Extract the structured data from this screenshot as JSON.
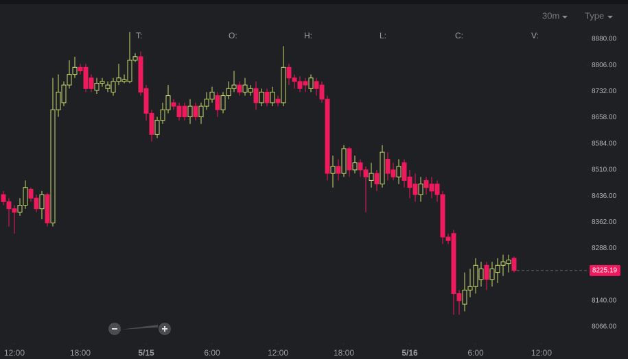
{
  "toolbar": {
    "interval": "30m",
    "chart_type": "Type"
  },
  "info_labels": [
    "T:",
    "O:",
    "H:",
    "L:",
    "C:",
    "V:"
  ],
  "chart_data": {
    "type": "candlestick",
    "up_color": "#c8dd6e",
    "down_color": "#ee1a5e",
    "ylim": [
      8021.5,
      8990.5
    ],
    "yticks": [
      {
        "value": 8880,
        "label": "8880.00"
      },
      {
        "value": 8806,
        "label": "8806.00"
      },
      {
        "value": 8732,
        "label": "8732.00"
      },
      {
        "value": 8658,
        "label": "8658.00"
      },
      {
        "value": 8584,
        "label": "8584.00"
      },
      {
        "value": 8510,
        "label": "8510.00"
      },
      {
        "value": 8436,
        "label": "8436.00"
      },
      {
        "value": 8362,
        "label": "8362.00"
      },
      {
        "value": 8288,
        "label": "8288.00"
      },
      {
        "value": 8140,
        "label": "8140.00"
      },
      {
        "value": 8066,
        "label": "8066.00"
      }
    ],
    "xlim": [
      -0.625,
      106.25
    ],
    "xticks": [
      {
        "value": 2,
        "label": "12:00"
      },
      {
        "value": 14,
        "label": "18:00"
      },
      {
        "value": 26,
        "label": "5/15"
      },
      {
        "value": 38,
        "label": "6:00"
      },
      {
        "value": 50,
        "label": "12:00"
      },
      {
        "value": 62,
        "label": "18:00"
      },
      {
        "value": 74,
        "label": "5/16"
      },
      {
        "value": 86,
        "label": "6:00"
      },
      {
        "value": 98,
        "label": "12:00"
      }
    ],
    "last_price": 8225.19,
    "open": [
      8440,
      8420,
      8400,
      8390,
      8410,
      8455,
      8430,
      8400,
      8440,
      8360,
      8680,
      8700,
      8750,
      8780,
      8800,
      8800,
      8770,
      8735,
      8755,
      8740,
      8730,
      8760,
      8760,
      8760,
      8820,
      8830,
      8740,
      8670,
      8610,
      8650,
      8680,
      8700,
      8690,
      8690,
      8660,
      8690,
      8660,
      8690,
      8710,
      8720,
      8680,
      8720,
      8740,
      8750,
      8730,
      8730,
      8740,
      8700,
      8730,
      8700,
      8710,
      8700,
      8800,
      8770,
      8760,
      8760,
      8740,
      8760,
      8750,
      8710,
      8500,
      8520,
      8500,
      8570,
      8510,
      8530,
      8510,
      8480,
      8500,
      8470,
      8540,
      8510,
      8490,
      8530,
      8490,
      8470,
      8440,
      8480,
      8470,
      8470,
      8440,
      8320,
      8330,
      8160,
      8130,
      8170,
      8180,
      8200,
      8240,
      8200,
      8220,
      8240,
      8245,
      8260
    ],
    "high": [
      8450,
      8430,
      8410,
      8430,
      8480,
      8460,
      8440,
      8450,
      8445,
      8770,
      8780,
      8760,
      8820,
      8830,
      8810,
      8810,
      8780,
      8770,
      8770,
      8760,
      8770,
      8810,
      8780,
      8900,
      8840,
      8845,
      8750,
      8680,
      8660,
      8700,
      8750,
      8710,
      8700,
      8700,
      8710,
      8700,
      8700,
      8730,
      8745,
      8730,
      8730,
      8760,
      8790,
      8760,
      8770,
      8750,
      8760,
      8740,
      8740,
      8745,
      8720,
      8860,
      8810,
      8780,
      8775,
      8770,
      8780,
      8770,
      8760,
      8720,
      8550,
      8540,
      8580,
      8575,
      8550,
      8540,
      8520,
      8530,
      8510,
      8580,
      8560,
      8530,
      8540,
      8540,
      8510,
      8500,
      8490,
      8490,
      8490,
      8480,
      8450,
      8330,
      8340,
      8170,
      8220,
      8230,
      8260,
      8250,
      8250,
      8250,
      8260,
      8270,
      8270,
      8265
    ],
    "low": [
      8410,
      8350,
      8330,
      8380,
      8400,
      8420,
      8390,
      8370,
      8350,
      8350,
      8660,
      8690,
      8740,
      8770,
      8780,
      8730,
      8730,
      8725,
      8745,
      8730,
      8720,
      8750,
      8755,
      8755,
      8815,
      8720,
      8650,
      8590,
      8600,
      8640,
      8670,
      8680,
      8650,
      8650,
      8640,
      8650,
      8640,
      8680,
      8700,
      8660,
      8670,
      8710,
      8730,
      8720,
      8720,
      8720,
      8680,
      8690,
      8690,
      8690,
      8690,
      8690,
      8750,
      8740,
      8730,
      8730,
      8730,
      8720,
      8700,
      8480,
      8460,
      8480,
      8490,
      8490,
      8500,
      8490,
      8390,
      8460,
      8450,
      8460,
      8480,
      8480,
      8470,
      8460,
      8430,
      8420,
      8420,
      8440,
      8430,
      8420,
      8300,
      8300,
      8100,
      8100,
      8110,
      8150,
      8160,
      8180,
      8170,
      8180,
      8190,
      8210,
      8220,
      8220
    ],
    "close": [
      8420,
      8400,
      8390,
      8410,
      8460,
      8430,
      8400,
      8440,
      8360,
      8680,
      8730,
      8750,
      8780,
      8800,
      8790,
      8740,
      8740,
      8755,
      8760,
      8750,
      8760,
      8770,
      8765,
      8820,
      8830,
      8730,
      8670,
      8610,
      8650,
      8680,
      8720,
      8690,
      8660,
      8660,
      8690,
      8660,
      8690,
      8710,
      8730,
      8680,
      8720,
      8740,
      8750,
      8730,
      8750,
      8740,
      8700,
      8730,
      8700,
      8730,
      8700,
      8800,
      8770,
      8760,
      8740,
      8750,
      8770,
      8740,
      8710,
      8500,
      8520,
      8500,
      8570,
      8510,
      8530,
      8510,
      8490,
      8500,
      8470,
      8560,
      8500,
      8490,
      8520,
      8480,
      8460,
      8440,
      8470,
      8460,
      8450,
      8440,
      8320,
      8310,
      8160,
      8140,
      8170,
      8180,
      8240,
      8230,
      8200,
      8230,
      8240,
      8250,
      8255,
      8225.19
    ]
  }
}
